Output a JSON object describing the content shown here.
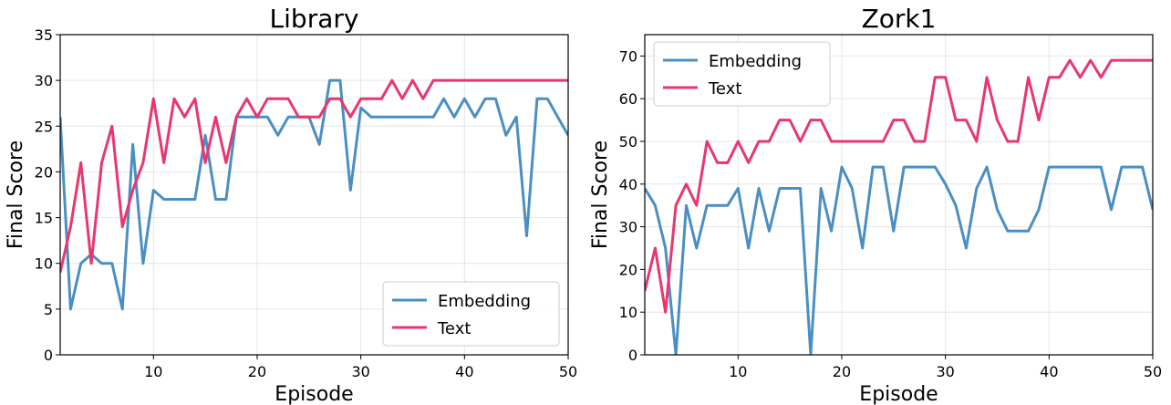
{
  "chart_data": [
    {
      "type": "line",
      "title": "Library",
      "xlabel": "Episode",
      "ylabel": "Final Score",
      "xlim": [
        1,
        50
      ],
      "ylim": [
        0,
        35
      ],
      "xticks": [
        10,
        20,
        30,
        40,
        50
      ],
      "yticks": [
        0,
        5,
        10,
        15,
        20,
        25,
        30,
        35
      ],
      "grid": true,
      "legend_position": "lower-right",
      "x": [
        1,
        2,
        3,
        4,
        5,
        6,
        7,
        8,
        9,
        10,
        11,
        12,
        13,
        14,
        15,
        16,
        17,
        18,
        19,
        20,
        21,
        22,
        23,
        24,
        25,
        26,
        27,
        28,
        29,
        30,
        31,
        32,
        33,
        34,
        35,
        36,
        37,
        38,
        39,
        40,
        41,
        42,
        43,
        44,
        45,
        46,
        47,
        48,
        49,
        50
      ],
      "series": [
        {
          "name": "Embedding",
          "color": "#4a8fc4",
          "values": [
            26,
            5,
            10,
            11,
            10,
            10,
            5,
            23,
            10,
            18,
            17,
            17,
            17,
            17,
            24,
            17,
            17,
            26,
            26,
            26,
            26,
            24,
            26,
            26,
            26,
            23,
            30,
            30,
            18,
            27,
            26,
            26,
            26,
            26,
            26,
            26,
            26,
            28,
            26,
            28,
            26,
            28,
            28,
            24,
            26,
            13,
            28,
            28,
            26,
            24
          ]
        },
        {
          "name": "Text",
          "color": "#e8376f",
          "values": [
            9,
            14,
            21,
            10,
            21,
            25,
            14,
            18,
            21,
            28,
            21,
            28,
            26,
            28,
            21,
            26,
            21,
            26,
            28,
            26,
            28,
            28,
            28,
            26,
            26,
            26,
            28,
            28,
            26,
            28,
            28,
            28,
            30,
            28,
            30,
            28,
            30,
            30,
            30,
            30,
            30,
            30,
            30,
            30,
            30,
            30,
            30,
            30,
            30,
            30
          ]
        }
      ]
    },
    {
      "type": "line",
      "title": "Zork1",
      "xlabel": "Episode",
      "ylabel": "Final Score",
      "xlim": [
        1,
        50
      ],
      "ylim": [
        0,
        75
      ],
      "xticks": [
        10,
        20,
        30,
        40,
        50
      ],
      "yticks": [
        0,
        10,
        20,
        30,
        40,
        50,
        60,
        70
      ],
      "grid": true,
      "legend_position": "upper-left",
      "x": [
        1,
        2,
        3,
        4,
        5,
        6,
        7,
        8,
        9,
        10,
        11,
        12,
        13,
        14,
        15,
        16,
        17,
        18,
        19,
        20,
        21,
        22,
        23,
        24,
        25,
        26,
        27,
        28,
        29,
        30,
        31,
        32,
        33,
        34,
        35,
        36,
        37,
        38,
        39,
        40,
        41,
        42,
        43,
        44,
        45,
        46,
        47,
        48,
        49,
        50
      ],
      "series": [
        {
          "name": "Embedding",
          "color": "#4a8fc4",
          "values": [
            39,
            35,
            25,
            0,
            35,
            25,
            35,
            35,
            35,
            39,
            25,
            39,
            29,
            39,
            39,
            39,
            0,
            39,
            29,
            44,
            39,
            25,
            44,
            44,
            29,
            44,
            44,
            44,
            44,
            40,
            35,
            25,
            39,
            44,
            34,
            29,
            29,
            29,
            34,
            44,
            44,
            44,
            44,
            44,
            44,
            34,
            44,
            44,
            44,
            34
          ]
        },
        {
          "name": "Text",
          "color": "#e8376f",
          "values": [
            15,
            25,
            10,
            35,
            40,
            35,
            50,
            45,
            45,
            50,
            45,
            50,
            50,
            55,
            55,
            50,
            55,
            55,
            50,
            50,
            50,
            50,
            50,
            50,
            55,
            55,
            50,
            50,
            65,
            65,
            55,
            55,
            50,
            65,
            55,
            50,
            50,
            65,
            55,
            65,
            65,
            69,
            65,
            69,
            65,
            69,
            69,
            69,
            69,
            69
          ]
        }
      ]
    }
  ]
}
